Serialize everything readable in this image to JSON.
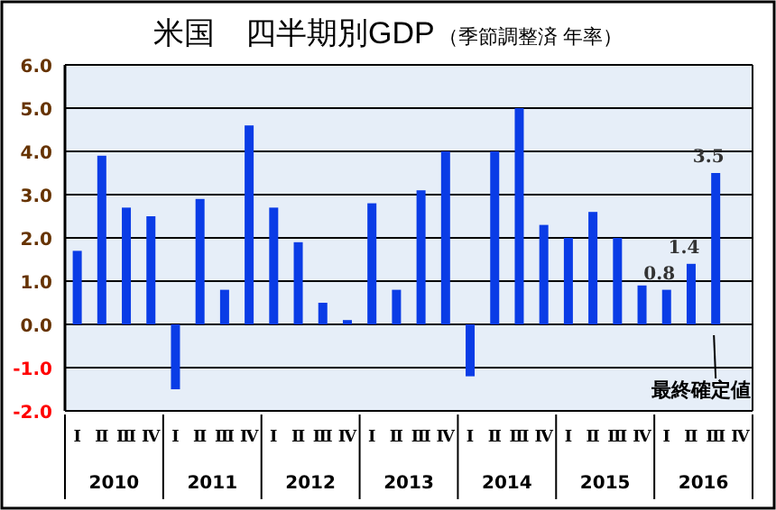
{
  "chart_data": {
    "type": "bar",
    "title": "米国　四半期別GDP",
    "subtitle": "（季節調整済 年率）",
    "categories": [
      "Ⅰ",
      "Ⅱ",
      "Ⅲ",
      "Ⅳ",
      "Ⅰ",
      "Ⅱ",
      "Ⅲ",
      "Ⅳ",
      "Ⅰ",
      "Ⅱ",
      "Ⅲ",
      "Ⅳ",
      "Ⅰ",
      "Ⅱ",
      "Ⅲ",
      "Ⅳ",
      "Ⅰ",
      "Ⅱ",
      "Ⅲ",
      "Ⅳ",
      "Ⅰ",
      "Ⅱ",
      "Ⅲ",
      "Ⅳ",
      "Ⅰ",
      "Ⅱ",
      "Ⅲ",
      "Ⅳ"
    ],
    "values": [
      1.7,
      3.9,
      2.7,
      2.5,
      -1.5,
      2.9,
      0.8,
      4.6,
      2.7,
      1.9,
      0.5,
      0.1,
      2.8,
      0.8,
      3.1,
      4.0,
      -1.2,
      4.0,
      5.0,
      2.3,
      2.0,
      2.6,
      2.0,
      0.9,
      0.8,
      1.4,
      3.5,
      null
    ],
    "value_labels": [
      null,
      null,
      null,
      null,
      null,
      null,
      null,
      null,
      null,
      null,
      null,
      null,
      null,
      null,
      null,
      null,
      null,
      null,
      null,
      null,
      null,
      null,
      null,
      null,
      "0.8",
      "1.4",
      "3.5",
      null
    ],
    "color": "#0a3ce6",
    "ylim": [
      -2,
      6
    ],
    "yticks": [
      {
        "value": -2,
        "label": "-2.0"
      },
      {
        "value": -1,
        "label": "-1.0"
      },
      {
        "value": 0,
        "label": "0.0"
      },
      {
        "value": 1,
        "label": "1.0"
      },
      {
        "value": 2,
        "label": "2.0"
      },
      {
        "value": 3,
        "label": "3.0"
      },
      {
        "value": 4,
        "label": "4.0"
      },
      {
        "value": 5,
        "label": "5.0"
      },
      {
        "value": 6,
        "label": "6.0"
      }
    ],
    "grid": "y",
    "annotations": [
      "2010",
      "2011",
      "2012",
      "2013",
      "2014",
      "2015",
      "2016",
      "最終確定値"
    ]
  }
}
